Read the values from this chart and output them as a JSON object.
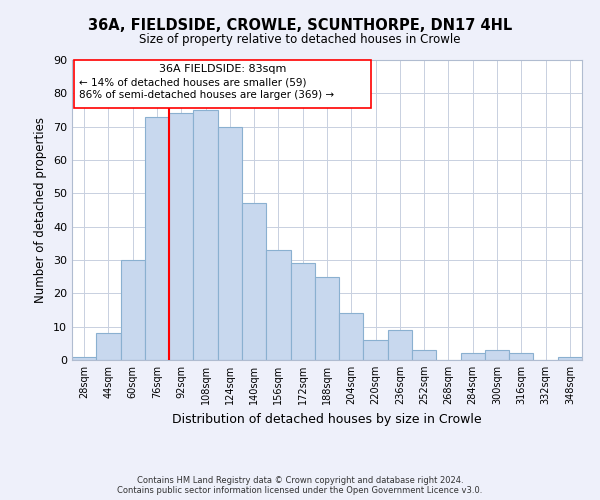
{
  "title": "36A, FIELDSIDE, CROWLE, SCUNTHORPE, DN17 4HL",
  "subtitle": "Size of property relative to detached houses in Crowle",
  "xlabel": "Distribution of detached houses by size in Crowle",
  "ylabel": "Number of detached properties",
  "bar_color": "#c8d8ee",
  "bar_edge_color": "#8ab0d0",
  "bins": [
    "28sqm",
    "44sqm",
    "60sqm",
    "76sqm",
    "92sqm",
    "108sqm",
    "124sqm",
    "140sqm",
    "156sqm",
    "172sqm",
    "188sqm",
    "204sqm",
    "220sqm",
    "236sqm",
    "252sqm",
    "268sqm",
    "284sqm",
    "300sqm",
    "316sqm",
    "332sqm",
    "348sqm"
  ],
  "values": [
    1,
    8,
    30,
    73,
    74,
    75,
    70,
    47,
    33,
    29,
    25,
    14,
    6,
    9,
    3,
    0,
    2,
    3,
    2,
    0,
    1
  ],
  "property_bin_index": 3,
  "annotation_title": "36A FIELDSIDE: 83sqm",
  "annotation_line1": "← 14% of detached houses are smaller (59)",
  "annotation_line2": "86% of semi-detached houses are larger (369) →",
  "ylim": [
    0,
    90
  ],
  "yticks": [
    0,
    10,
    20,
    30,
    40,
    50,
    60,
    70,
    80,
    90
  ],
  "footer1": "Contains HM Land Registry data © Crown copyright and database right 2024.",
  "footer2": "Contains public sector information licensed under the Open Government Licence v3.0.",
  "background_color": "#eef0fa",
  "plot_background": "#ffffff",
  "grid_color": "#c8d0e0"
}
